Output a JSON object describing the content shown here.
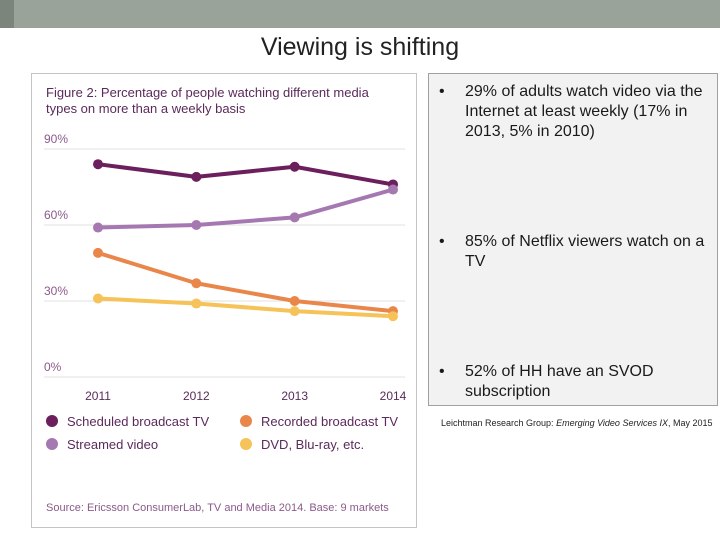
{
  "slide": {
    "title": "Viewing is shifting",
    "colors": {
      "topbar": "#9aa39a"
    }
  },
  "figure": {
    "title": "Figure 2: Percentage of people watching different media types on more than a weekly basis",
    "source": "Source: Ericsson ConsumerLab, TV and Media 2014. Base: 9 markets"
  },
  "chart_data": {
    "type": "line",
    "title": "Figure 2: Percentage of people watching different media types on more than a weekly basis",
    "xlabel": "",
    "ylabel": "",
    "x": [
      "2011",
      "2012",
      "2013",
      "2014"
    ],
    "ylim": [
      0,
      90
    ],
    "yticks": [
      0,
      30,
      60,
      90
    ],
    "ytick_labels": [
      "0%",
      "30%",
      "60%",
      "90%"
    ],
    "grid": true,
    "legend_position": "bottom",
    "series": [
      {
        "name": "Scheduled broadcast TV",
        "color": "#6b1f5c",
        "values": [
          84,
          79,
          83,
          76
        ]
      },
      {
        "name": "Streamed video",
        "color": "#a678b1",
        "values": [
          59,
          60,
          63,
          74
        ]
      },
      {
        "name": "Recorded broadcast TV",
        "color": "#e9874a",
        "values": [
          49,
          37,
          30,
          26
        ]
      },
      {
        "name": "DVD, Blu-ray, etc.",
        "color": "#f5c35a",
        "values": [
          31,
          29,
          26,
          24
        ]
      }
    ]
  },
  "bullets": [
    {
      "marker": "•",
      "text": "29% of adults watch video via the Internet at least weekly  (17% in 2013, 5% in 2010)"
    },
    {
      "marker": "•",
      "text": "85% of Netflix viewers watch on a TV"
    },
    {
      "marker": "•",
      "text": "52% of HH have an SVOD subscription"
    }
  ],
  "citation": {
    "prefix": "Leichtman Research Group: ",
    "title": "Emerging Video Services IX",
    "suffix": ",  May 2015"
  }
}
